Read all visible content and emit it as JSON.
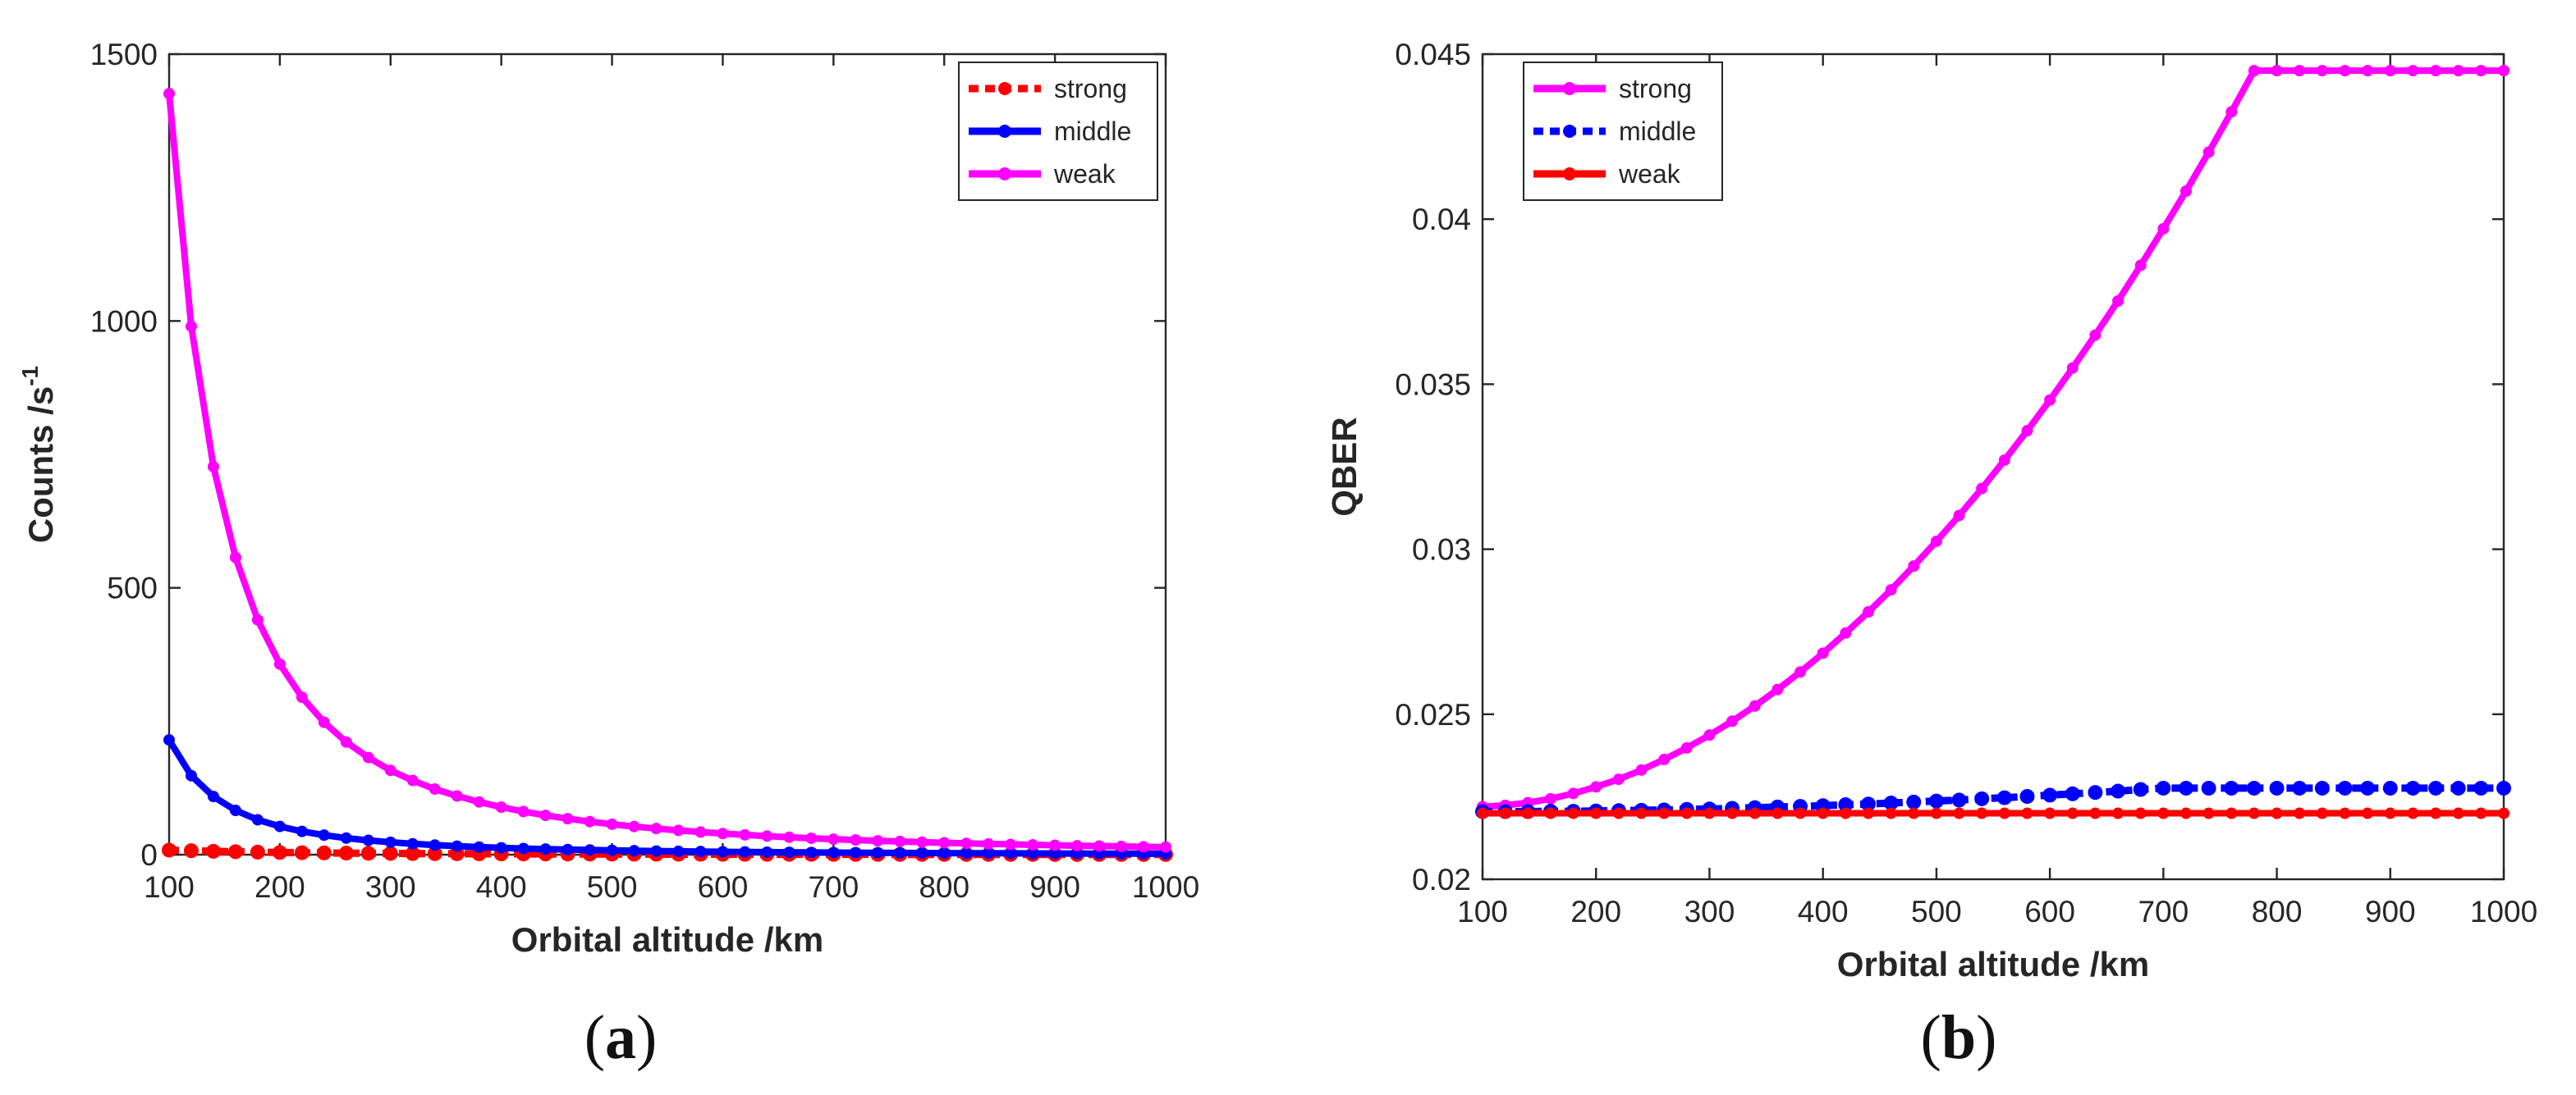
{
  "chart_data": [
    {
      "type": "line",
      "caption_open": "(",
      "caption_letter": "a",
      "caption_close": ")",
      "title": "",
      "xlabel": "Orbital altitude /km",
      "ylabel": "Counts /s",
      "ylabel_sup": "-1",
      "xlim": [
        100,
        1000
      ],
      "ylim": [
        0,
        1500
      ],
      "xticks": [
        100,
        200,
        300,
        400,
        500,
        600,
        700,
        800,
        900,
        1000
      ],
      "yticks": [
        0,
        500,
        1000,
        1500
      ],
      "ytick_labels": [
        "0",
        "500",
        "1000",
        "1500"
      ],
      "legend_location": "top-right",
      "x": [
        100,
        120,
        140,
        160,
        180,
        200,
        220,
        240,
        260,
        280,
        300,
        320,
        340,
        360,
        380,
        400,
        420,
        440,
        460,
        480,
        500,
        520,
        540,
        560,
        580,
        600,
        620,
        640,
        660,
        680,
        700,
        720,
        740,
        760,
        780,
        800,
        820,
        840,
        860,
        880,
        900,
        920,
        940,
        960,
        980,
        1000
      ],
      "series": [
        {
          "name": "strong",
          "color": "#ff0000",
          "style": "dotted",
          "values": [
            8.5,
            7.4,
            6.3,
            5.5,
            4.8,
            4.2,
            3.7,
            3.3,
            2.9,
            2.6,
            2.4,
            2.1,
            1.9,
            1.8,
            1.6,
            1.5,
            1.4,
            1.3,
            1.2,
            1.1,
            1.0,
            0.95,
            0.9,
            0.84,
            0.8,
            0.75,
            0.71,
            0.67,
            0.64,
            0.6,
            0.57,
            0.55,
            0.52,
            0.5,
            0.48,
            0.46,
            0.44,
            0.42,
            0.4,
            0.39,
            0.37,
            0.36,
            0.34,
            0.33,
            0.32,
            0.31
          ]
        },
        {
          "name": "middle",
          "color": "#0000ff",
          "style": "solid",
          "values": [
            215,
            148,
            109,
            83,
            65.4,
            52.9,
            43.6,
            36.6,
            31.1,
            26.8,
            23.3,
            20.4,
            18.0,
            16.0,
            14.3,
            12.9,
            11.6,
            10.5,
            9.6,
            8.8,
            8.1,
            7.4,
            6.8,
            6.3,
            5.9,
            5.4,
            5.1,
            4.7,
            4.4,
            4.1,
            3.9,
            3.7,
            3.4,
            3.2,
            3.1,
            2.9,
            2.7,
            2.6,
            2.5,
            2.3,
            2.2,
            2.1,
            2.0,
            1.9,
            1.8,
            1.7
          ]
        },
        {
          "name": "weak",
          "color": "#ff00ff",
          "style": "solid",
          "values": [
            1426,
            990,
            727,
            557,
            440,
            357,
            295,
            248,
            211,
            182,
            158,
            139,
            123,
            110,
            98.8,
            89.1,
            80.8,
            73.6,
            67.4,
            61.9,
            57.0,
            52.7,
            48.9,
            45.5,
            42.4,
            39.6,
            37.1,
            34.8,
            32.7,
            30.8,
            29.1,
            27.5,
            26.0,
            24.7,
            23.4,
            22.3,
            21.2,
            20.2,
            19.3,
            18.4,
            17.6,
            16.8,
            16.1,
            15.5,
            14.8,
            14.3
          ]
        }
      ]
    },
    {
      "type": "line",
      "caption_open": "(",
      "caption_letter": "b",
      "caption_close": ")",
      "title": "",
      "xlabel": "Orbital altitude /km",
      "ylabel": "QBER",
      "ylabel_sup": "",
      "xlim": [
        100,
        1000
      ],
      "ylim": [
        0.02,
        0.045
      ],
      "xticks": [
        100,
        200,
        300,
        400,
        500,
        600,
        700,
        800,
        900,
        1000
      ],
      "yticks": [
        0.02,
        0.025,
        0.03,
        0.035,
        0.04,
        0.045
      ],
      "ytick_labels": [
        "0.02",
        "0.025",
        "0.03",
        "0.035",
        "0.04",
        "0.045"
      ],
      "legend_location": "top-left",
      "x": [
        100,
        120,
        140,
        160,
        180,
        200,
        220,
        240,
        260,
        280,
        300,
        320,
        340,
        360,
        380,
        400,
        420,
        440,
        460,
        480,
        500,
        520,
        540,
        560,
        580,
        600,
        620,
        640,
        660,
        680,
        700,
        720,
        740,
        760,
        780,
        800,
        820,
        840,
        860,
        880,
        900,
        920,
        940,
        960,
        980,
        1000
      ],
      "series": [
        {
          "name": "strong",
          "color": "#ff00ff",
          "style": "solid",
          "values": [
            0.0222,
            0.02224,
            0.02232,
            0.02244,
            0.0226,
            0.0228,
            0.02303,
            0.02331,
            0.02363,
            0.02398,
            0.02437,
            0.02479,
            0.02525,
            0.02575,
            0.02628,
            0.02685,
            0.02746,
            0.0281,
            0.02877,
            0.02949,
            0.03024,
            0.03102,
            0.03184,
            0.0327,
            0.03359,
            0.03452,
            0.03549,
            0.03649,
            0.03752,
            0.0386,
            0.03971,
            0.04085,
            0.04203,
            0.04325,
            0.0445,
            0.0445,
            0.0445,
            0.0445,
            0.0445,
            0.0445,
            0.0445,
            0.0445,
            0.0445,
            0.0445,
            0.0445,
            0.0445
          ]
        },
        {
          "name": "middle",
          "color": "#0000ff",
          "style": "dotted",
          "values": [
            0.02205,
            0.02205,
            0.02205,
            0.02206,
            0.02206,
            0.02207,
            0.02208,
            0.02209,
            0.0221,
            0.02212,
            0.02213,
            0.02215,
            0.02217,
            0.02219,
            0.02221,
            0.02223,
            0.02226,
            0.02228,
            0.02231,
            0.02234,
            0.02237,
            0.0224,
            0.02244,
            0.02247,
            0.02251,
            0.02255,
            0.02259,
            0.02263,
            0.02267,
            0.02272,
            0.02276,
            0.02276,
            0.02276,
            0.02276,
            0.02276,
            0.02276,
            0.02276,
            0.02276,
            0.02276,
            0.02276,
            0.02276,
            0.02276,
            0.02276,
            0.02276,
            0.02276,
            0.02276
          ]
        },
        {
          "name": "weak",
          "color": "#ff0000",
          "style": "solid",
          "values": [
            0.022,
            0.022,
            0.022,
            0.022,
            0.022,
            0.022,
            0.022,
            0.022,
            0.022,
            0.022,
            0.022,
            0.022,
            0.022,
            0.022,
            0.022,
            0.022,
            0.022,
            0.022,
            0.022,
            0.022,
            0.022,
            0.022,
            0.022,
            0.022,
            0.022,
            0.022,
            0.022,
            0.022,
            0.022,
            0.022,
            0.022,
            0.022,
            0.022,
            0.022,
            0.022,
            0.022,
            0.022,
            0.022,
            0.022,
            0.022,
            0.022,
            0.022,
            0.022,
            0.022,
            0.022,
            0.022
          ]
        }
      ]
    }
  ]
}
